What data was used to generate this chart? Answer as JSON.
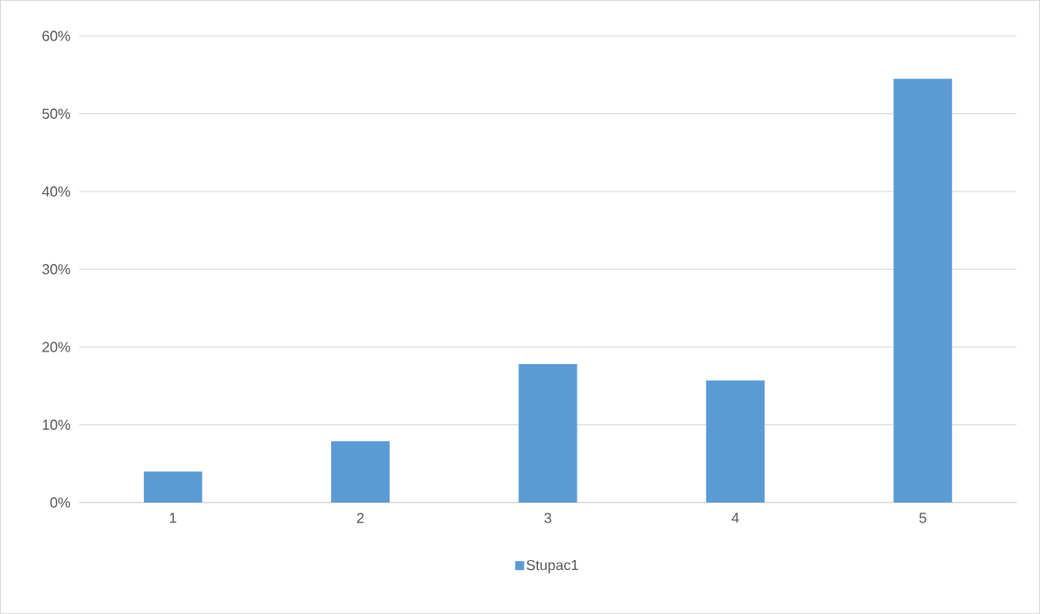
{
  "chart_data": {
    "type": "bar",
    "categories": [
      "1",
      "2",
      "3",
      "4",
      "5"
    ],
    "series": [
      {
        "name": "Stupac1",
        "color": "#5b9bd5",
        "values": [
          4,
          7.9,
          17.8,
          15.7,
          54.5
        ]
      }
    ],
    "ylim": [
      0,
      60
    ],
    "yticks": [
      {
        "value": 0,
        "label": "0%"
      },
      {
        "value": 10,
        "label": "10%"
      },
      {
        "value": 20,
        "label": "20%"
      },
      {
        "value": 30,
        "label": "30%"
      },
      {
        "value": 40,
        "label": "40%"
      },
      {
        "value": 50,
        "label": "50%"
      },
      {
        "value": 60,
        "label": "60%"
      }
    ],
    "grid": "y",
    "legend": "bottom"
  }
}
